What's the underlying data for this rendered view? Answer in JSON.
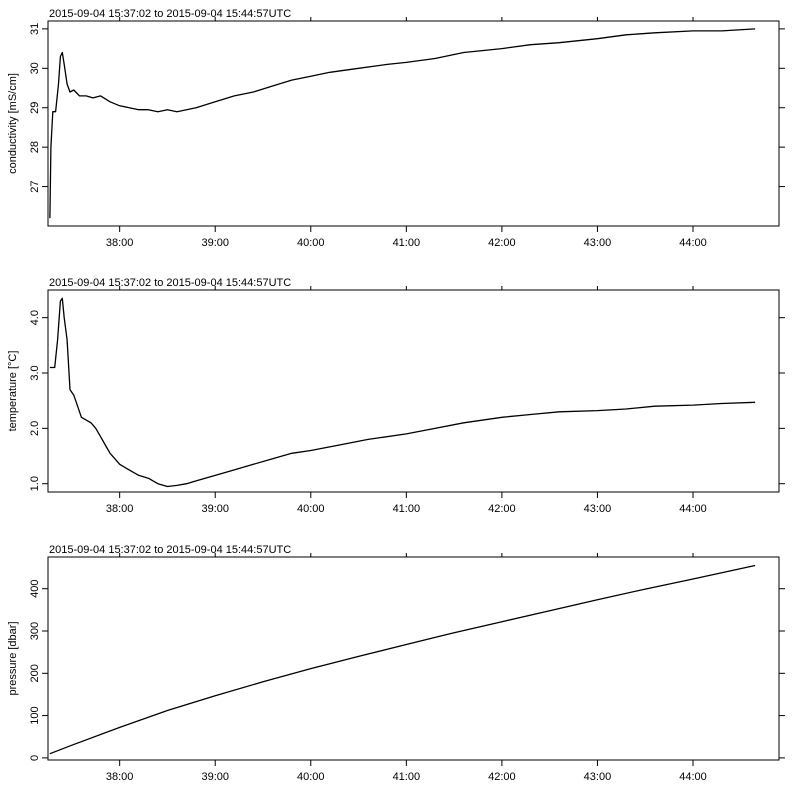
{
  "chart_data": [
    {
      "type": "line",
      "title": "2015-09-04 15:37:02 to 2015-09-04 15:44:57UTC",
      "xlabel": "",
      "ylabel": "conductivity [mS/cm]",
      "xlim": [
        37.25,
        44.9
      ],
      "ylim": [
        26.0,
        31.2
      ],
      "x_ticks": [
        38,
        39,
        40,
        41,
        42,
        43,
        44
      ],
      "x_tick_labels": [
        "38:00",
        "39:00",
        "40:00",
        "41:00",
        "42:00",
        "43:00",
        "44:00"
      ],
      "y_ticks": [
        27,
        28,
        29,
        30,
        31
      ],
      "y_tick_labels": [
        "27",
        "28",
        "29",
        "30",
        "31"
      ],
      "series": [
        {
          "name": "conductivity",
          "x": [
            37.27,
            37.28,
            37.3,
            37.33,
            37.36,
            37.38,
            37.4,
            37.42,
            37.45,
            37.48,
            37.52,
            37.58,
            37.65,
            37.72,
            37.8,
            37.9,
            38.0,
            38.1,
            38.2,
            38.3,
            38.4,
            38.5,
            38.6,
            38.7,
            38.8,
            39.0,
            39.2,
            39.4,
            39.6,
            39.8,
            40.0,
            40.2,
            40.5,
            40.8,
            41.0,
            41.3,
            41.6,
            42.0,
            42.3,
            42.6,
            43.0,
            43.3,
            43.6,
            44.0,
            44.3,
            44.65
          ],
          "values": [
            26.2,
            28.0,
            28.9,
            28.9,
            29.6,
            30.3,
            30.4,
            30.1,
            29.6,
            29.4,
            29.45,
            29.3,
            29.3,
            29.25,
            29.3,
            29.15,
            29.05,
            29.0,
            28.95,
            28.95,
            28.9,
            28.95,
            28.9,
            28.95,
            29.0,
            29.15,
            29.3,
            29.4,
            29.55,
            29.7,
            29.8,
            29.9,
            30.0,
            30.1,
            30.15,
            30.25,
            30.4,
            30.5,
            30.6,
            30.65,
            30.75,
            30.85,
            30.9,
            30.95,
            30.95,
            31.0
          ]
        }
      ]
    },
    {
      "type": "line",
      "title": "2015-09-04 15:37:02 to 2015-09-04 15:44:57UTC",
      "xlabel": "",
      "ylabel": "temperature [°C]",
      "xlim": [
        37.25,
        44.9
      ],
      "ylim": [
        0.85,
        4.5
      ],
      "x_ticks": [
        38,
        39,
        40,
        41,
        42,
        43,
        44
      ],
      "x_tick_labels": [
        "38:00",
        "39:00",
        "40:00",
        "41:00",
        "42:00",
        "43:00",
        "44:00"
      ],
      "y_ticks": [
        1.0,
        2.0,
        3.0,
        4.0
      ],
      "y_tick_labels": [
        "1.0",
        "2.0",
        "3.0",
        "4.0"
      ],
      "series": [
        {
          "name": "temperature",
          "x": [
            37.27,
            37.32,
            37.35,
            37.38,
            37.4,
            37.42,
            37.45,
            37.48,
            37.52,
            37.56,
            37.6,
            37.65,
            37.7,
            37.75,
            37.8,
            37.85,
            37.9,
            38.0,
            38.1,
            38.2,
            38.3,
            38.4,
            38.5,
            38.6,
            38.7,
            38.8,
            39.0,
            39.2,
            39.4,
            39.6,
            39.8,
            40.0,
            40.3,
            40.6,
            41.0,
            41.3,
            41.6,
            42.0,
            42.3,
            42.6,
            43.0,
            43.3,
            43.6,
            44.0,
            44.3,
            44.65
          ],
          "values": [
            3.1,
            3.1,
            3.6,
            4.3,
            4.35,
            4.0,
            3.6,
            2.7,
            2.6,
            2.4,
            2.2,
            2.15,
            2.1,
            2.0,
            1.85,
            1.7,
            1.55,
            1.35,
            1.25,
            1.15,
            1.1,
            1.0,
            0.95,
            0.97,
            1.0,
            1.05,
            1.15,
            1.25,
            1.35,
            1.45,
            1.55,
            1.6,
            1.7,
            1.8,
            1.9,
            2.0,
            2.1,
            2.2,
            2.25,
            2.3,
            2.32,
            2.35,
            2.4,
            2.42,
            2.45,
            2.47
          ]
        }
      ]
    },
    {
      "type": "line",
      "title": "2015-09-04 15:37:02 to 2015-09-04 15:44:57UTC",
      "xlabel": "",
      "ylabel": "pressure [dbar]",
      "xlim": [
        37.25,
        44.9
      ],
      "ylim": [
        -5,
        475
      ],
      "x_ticks": [
        38,
        39,
        40,
        41,
        42,
        43,
        44
      ],
      "x_tick_labels": [
        "38:00",
        "39:00",
        "40:00",
        "41:00",
        "42:00",
        "43:00",
        "44:00"
      ],
      "y_ticks": [
        0,
        100,
        200,
        300,
        400
      ],
      "y_tick_labels": [
        "0",
        "100",
        "200",
        "300",
        "400"
      ],
      "series": [
        {
          "name": "pressure",
          "x": [
            37.27,
            37.5,
            38.0,
            38.5,
            39.0,
            39.5,
            40.0,
            40.5,
            41.0,
            41.5,
            42.0,
            42.5,
            43.0,
            43.5,
            44.0,
            44.65
          ],
          "values": [
            10,
            30,
            72,
            112,
            147,
            180,
            211,
            240,
            268,
            296,
            322,
            348,
            374,
            399,
            423,
            455
          ]
        }
      ]
    }
  ]
}
